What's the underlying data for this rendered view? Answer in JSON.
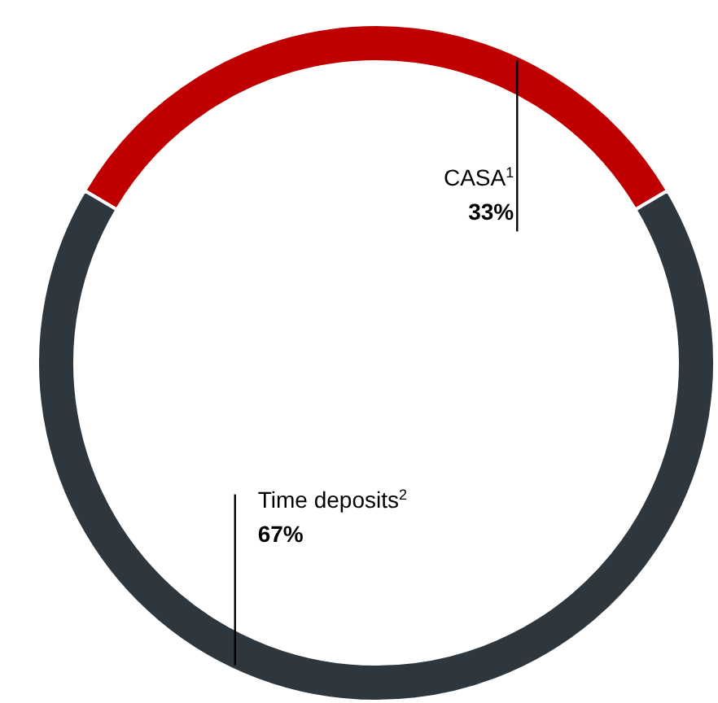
{
  "chart_data": {
    "type": "donut",
    "categories": [
      "CASA$^{1}$",
      "Time deposits$^{2}$"
    ],
    "values": [
      33,
      67
    ],
    "colors": [
      "#c00000",
      "#2f373e"
    ],
    "value_labels": [
      "33%",
      "67%"
    ]
  }
}
